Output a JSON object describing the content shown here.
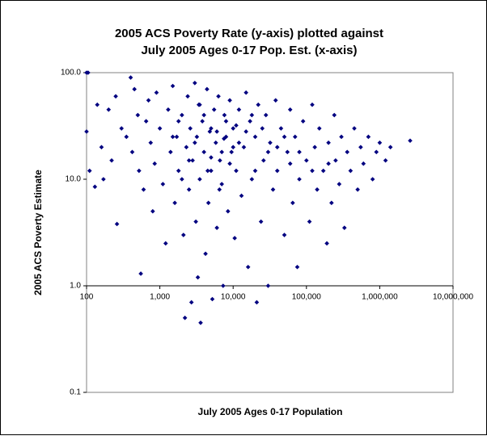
{
  "chart_data": {
    "type": "scatter",
    "title": [
      "2005 ACS Poverty Rate (y-axis) plotted against",
      "July 2005 Ages 0-17 Pop. Est. (x-axis)"
    ],
    "xlabel": "July 2005 Ages 0-17 Population",
    "ylabel": "2005 ACS Poverty Estimate",
    "xscale": "log",
    "yscale": "log",
    "xlim": [
      100,
      10000000
    ],
    "ylim": [
      0.1,
      100
    ],
    "xticks": [
      100,
      {
        "value": 1000,
        "label": "1,000"
      },
      {
        "value": 10000,
        "label": "10,000"
      },
      {
        "value": 100000,
        "label": "100,000"
      },
      {
        "value": 1000000,
        "label": "1,000,000"
      },
      {
        "value": 10000000,
        "label": "10,000,000"
      }
    ],
    "yticks": [
      {
        "value": 100,
        "label": "100.0"
      },
      {
        "value": 10,
        "label": "10.0"
      },
      {
        "value": 1,
        "label": "1.0"
      },
      0.1
    ],
    "x_axis_crosses": 1,
    "color": "#000080",
    "x": [
      100,
      105,
      100,
      110,
      130,
      140,
      160,
      170,
      200,
      220,
      250,
      260,
      300,
      350,
      400,
      420,
      450,
      500,
      520,
      550,
      600,
      650,
      700,
      750,
      800,
      850,
      900,
      1000,
      1100,
      1200,
      1300,
      1400,
      1500,
      1600,
      1700,
      1800,
      2000,
      2100,
      2200,
      2300,
      2400,
      2500,
      2600,
      2700,
      2800,
      3000,
      3100,
      3200,
      3300,
      3400,
      3500,
      3600,
      3800,
      4000,
      4200,
      4400,
      4600,
      4800,
      5000,
      5200,
      5500,
      5800,
      6000,
      6300,
      6600,
      7000,
      7300,
      7600,
      8000,
      8500,
      9000,
      9500,
      10000,
      10500,
      11000,
      12000,
      13000,
      14000,
      15000,
      16000,
      17000,
      18000,
      20000,
      21000,
      22000,
      24000,
      26000,
      28000,
      30000,
      32000,
      35000,
      38000,
      40000,
      45000,
      50000,
      55000,
      60000,
      65000,
      70000,
      75000,
      80000,
      90000,
      100000,
      110000,
      120000,
      130000,
      140000,
      150000,
      170000,
      190000,
      200000,
      220000,
      240000,
      250000,
      280000,
      300000,
      330000,
      360000,
      400000,
      450000,
      500000,
      550000,
      600000,
      700000,
      800000,
      900000,
      1000000,
      1200000,
      1400000,
      2600000,
      3000,
      5000,
      7000,
      9000,
      4000,
      6000,
      8000,
      12000,
      2500,
      1800,
      15000,
      20000,
      3500,
      6500,
      25000,
      40000,
      60000,
      30000,
      10000,
      4500,
      2000,
      1500,
      18000,
      5000,
      7500,
      11000,
      50000,
      80000,
      120000,
      200000
    ],
    "values": [
      100,
      100,
      28,
      12,
      8.5,
      50,
      20,
      10,
      45,
      15,
      60,
      3.8,
      30,
      25,
      90,
      18,
      70,
      40,
      12,
      1.3,
      8,
      35,
      55,
      22,
      5,
      14,
      65,
      30,
      9,
      2.5,
      45,
      18,
      75,
      6,
      25,
      12,
      40,
      3,
      0.5,
      20,
      60,
      8,
      30,
      0.7,
      15,
      80,
      4,
      25,
      1.2,
      50,
      10,
      0.45,
      35,
      18,
      2,
      70,
      6,
      28,
      12,
      0.75,
      45,
      22,
      3.5,
      60,
      15,
      9,
      1.0,
      40,
      25,
      5,
      55,
      18,
      30,
      2.8,
      12,
      45,
      7,
      20,
      65,
      1.5,
      35,
      10,
      25,
      0.7,
      50,
      4,
      15,
      40,
      1.0,
      22,
      8,
      55,
      12,
      30,
      3,
      18,
      45,
      6,
      25,
      1.5,
      10,
      35,
      15,
      4,
      50,
      20,
      8,
      30,
      12,
      2.5,
      22,
      6,
      40,
      15,
      9,
      25,
      3.5,
      18,
      12,
      30,
      8,
      20,
      14,
      25,
      10,
      18,
      22,
      15,
      20,
      23,
      22,
      30,
      18,
      14,
      40,
      28,
      35,
      22,
      15,
      35,
      28,
      12,
      50,
      8,
      30,
      20,
      14,
      18,
      20,
      12,
      10,
      25,
      40,
      16,
      24,
      32,
      25,
      18,
      12,
      14
    ]
  }
}
